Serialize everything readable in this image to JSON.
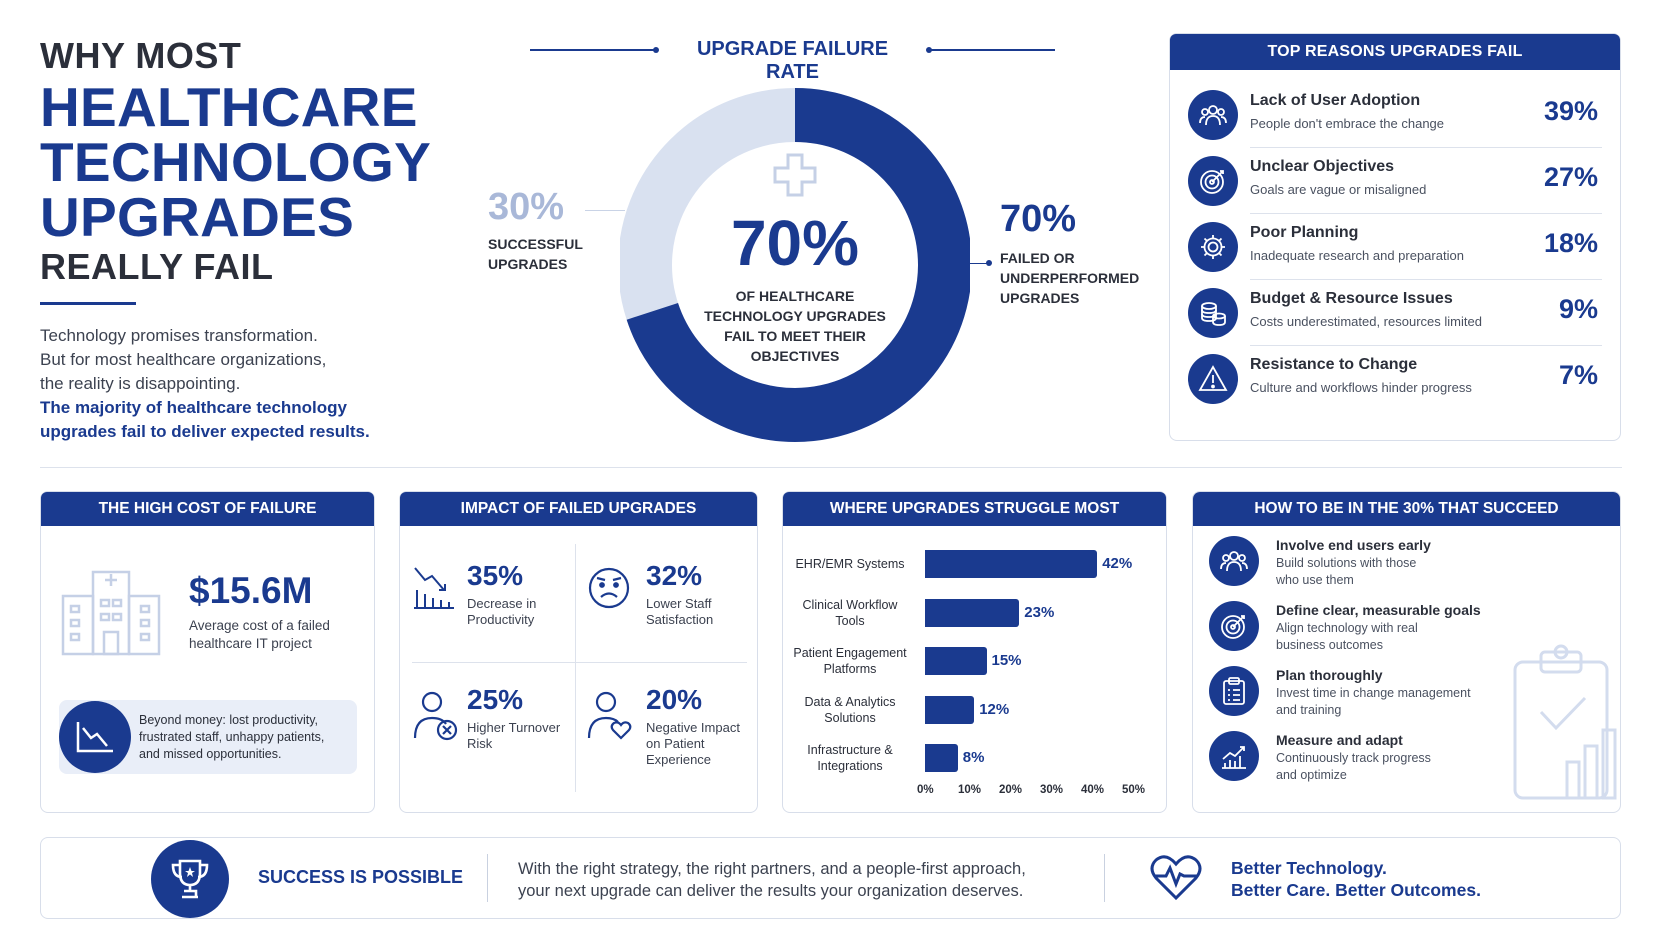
{
  "headline": {
    "line1": "WHY MOST",
    "line2": "HEALTHCARE",
    "line3": "TECHNOLOGY",
    "line4": "UPGRADES",
    "line5": "REALLY FAIL"
  },
  "intro": {
    "line1": "Technology promises transformation.",
    "line2": "But for most healthcare organizations,",
    "line3": "the reality is disappointing.",
    "bold1": "The majority of healthcare technology",
    "bold2": "upgrades fail to deliver expected results."
  },
  "failure_rate": {
    "title": "UPGRADE FAILURE RATE",
    "success_pct": "30%",
    "success_label1": "SUCCESSFUL",
    "success_label2": "UPGRADES",
    "fail_pct": "70%",
    "fail_label1": "FAILED OR",
    "fail_label2": "UNDERPERFORMED",
    "fail_label3": "UPGRADES",
    "center_pct": "70%",
    "center_line1": "OF HEALTHCARE",
    "center_line2": "TECHNOLOGY UPGRADES",
    "center_line3": "FAIL TO MEET THEIR",
    "center_line4": "OBJECTIVES",
    "fail_fraction": 0.7,
    "colors": {
      "fail": "#1a3a8f",
      "success": "#d9e1f0"
    }
  },
  "reasons": {
    "title": "TOP REASONS UPGRADES FAIL",
    "items": [
      {
        "title": "Lack of User Adoption",
        "sub": "People don't embrace the change",
        "pct": "39%",
        "icon": "users-icon"
      },
      {
        "title": "Unclear Objectives",
        "sub": "Goals are vague or misaligned",
        "pct": "27%",
        "icon": "target-icon"
      },
      {
        "title": "Poor Planning",
        "sub": "Inadequate research and preparation",
        "pct": "18%",
        "icon": "gear-icon"
      },
      {
        "title": "Budget & Resource Issues",
        "sub": "Costs underestimated, resources limited",
        "pct": "9%",
        "icon": "coins-icon"
      },
      {
        "title": "Resistance to Change",
        "sub": "Culture and workflows hinder progress",
        "pct": "7%",
        "icon": "warning-icon"
      }
    ]
  },
  "cost": {
    "title": "THE HIGH COST OF FAILURE",
    "amount": "$15.6M",
    "amount_line1": "Average cost of a failed",
    "amount_line2": "healthcare IT project",
    "note1": "Beyond money: lost productivity,",
    "note2": "frustrated staff, unhappy patients,",
    "note3": "and missed opportunities."
  },
  "impact": {
    "title": "IMPACT OF FAILED UPGRADES",
    "items": [
      {
        "pct": "35%",
        "l1": "Decrease in",
        "l2": "Productivity",
        "l3": "",
        "icon": "declining-chart-icon"
      },
      {
        "pct": "32%",
        "l1": "Lower Staff",
        "l2": "Satisfaction",
        "l3": "",
        "icon": "unhappy-face-icon"
      },
      {
        "pct": "25%",
        "l1": "Higher Turnover",
        "l2": "Risk",
        "l3": "",
        "icon": "user-remove-icon"
      },
      {
        "pct": "20%",
        "l1": "Negative Impact",
        "l2": "on Patient",
        "l3": "Experience",
        "icon": "patient-heart-icon"
      }
    ]
  },
  "struggle": {
    "title": "WHERE UPGRADES STRUGGLE MOST",
    "labels": [
      {
        "l1": "EHR/EMR Systems",
        "l2": ""
      },
      {
        "l1": "Clinical Workflow",
        "l2": "Tools"
      },
      {
        "l1": "Patient Engagement",
        "l2": "Platforms"
      },
      {
        "l1": "Data & Analytics",
        "l2": "Solutions"
      },
      {
        "l1": "Infrastructure &",
        "l2": "Integrations"
      }
    ],
    "value_labels": [
      "42%",
      "23%",
      "15%",
      "12%",
      "8%"
    ],
    "ticks": [
      "0%",
      "10%",
      "20%",
      "30%",
      "40%",
      "50%"
    ]
  },
  "chart_data": {
    "type": "bar",
    "orientation": "horizontal",
    "categories": [
      "EHR/EMR Systems",
      "Clinical Workflow Tools",
      "Patient Engagement Platforms",
      "Data & Analytics Solutions",
      "Infrastructure & Integrations"
    ],
    "values": [
      42,
      23,
      15,
      12,
      8
    ],
    "title": "WHERE UPGRADES STRUGGLE MOST",
    "xlabel": "",
    "ylabel": "",
    "xlim": [
      0,
      50
    ],
    "grid": false,
    "color": "#1a3a8f"
  },
  "tips": {
    "title": "HOW TO BE IN THE 30% THAT SUCCEED",
    "items": [
      {
        "title": "Involve end users early",
        "s1": "Build solutions with those",
        "s2": "who use them",
        "icon": "users-icon"
      },
      {
        "title": "Define clear, measurable goals",
        "s1": "Align technology with real",
        "s2": "business outcomes",
        "icon": "target-icon"
      },
      {
        "title": "Plan thoroughly",
        "s1": "Invest time in change management",
        "s2": "and training",
        "icon": "clipboard-icon"
      },
      {
        "title": "Measure and adapt",
        "s1": "Continuously track progress",
        "s2": "and optimize",
        "icon": "growth-chart-icon"
      }
    ]
  },
  "footer": {
    "success": "SUCCESS IS POSSIBLE",
    "msg1": "With the right strategy, the right partners, and a people-first approach,",
    "msg2": "your next upgrade can deliver the results your organization deserves.",
    "tag1": "Better Technology.",
    "tag2": "Better Care. Better Outcomes."
  }
}
